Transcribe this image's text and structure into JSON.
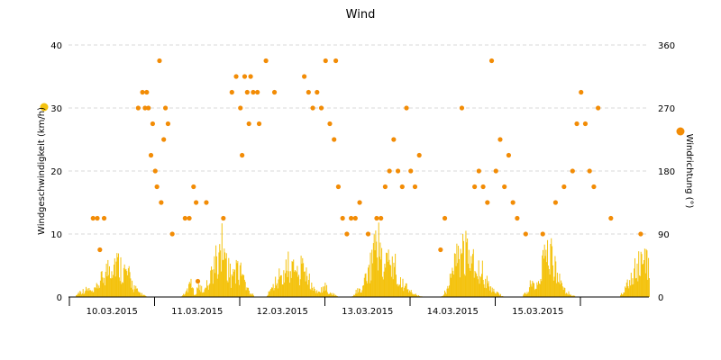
{
  "chart_data": {
    "type": "bar+scatter",
    "title": "Wind",
    "y_left": {
      "label": "Windgeschwindigkeit (km/h)",
      "range": [
        0,
        40
      ],
      "ticks": [
        "0",
        "10",
        "20",
        "30",
        "40"
      ],
      "color": "#f4c20d"
    },
    "y_right": {
      "label": "Windrichtung (°)",
      "range": [
        0,
        360
      ],
      "ticks": [
        "0",
        "90",
        "180",
        "270",
        "360"
      ],
      "color": "#f28c06"
    },
    "x_tick_labels": [
      "10.03.2015",
      "11.03.2015",
      "12.03.2015",
      "13.03.2015",
      "14.03.2015",
      "15.03.2015"
    ],
    "grid": "horizontal-dashed",
    "series": [
      {
        "kind": "bar",
        "axis": "left",
        "color": "#f4c20d",
        "day_segments": [
          [
            0.0,
            1.0,
            1.2,
            1.5,
            0.8,
            2.0,
            3.5,
            5.0,
            6.5,
            7.0,
            6.0,
            5.0,
            4.0,
            2.0,
            1.0,
            0.5,
            0.0
          ],
          [
            0.0,
            1.0,
            3.0,
            0.5,
            2.0,
            1.0,
            3.0,
            5.0,
            8.0,
            10.0,
            7.0,
            4.0,
            6.0,
            5.0,
            3.0,
            1.0,
            0.5
          ],
          [
            0.0,
            1.5,
            3.0,
            4.0,
            5.0,
            6.0,
            5.5,
            4.0,
            6.0,
            5.0,
            2.0,
            1.0,
            1.5,
            2.0,
            1.0,
            0.5,
            0.0
          ],
          [
            0.0,
            1.0,
            1.5,
            3.0,
            5.0,
            9.0,
            10.5,
            7.0,
            8.0,
            6.5,
            5.0,
            3.0,
            2.0,
            1.0,
            0.5,
            0.2,
            0.0
          ],
          [
            0.0,
            1.0,
            3.0,
            6.0,
            8.0,
            10.0,
            9.0,
            7.0,
            6.0,
            5.0,
            3.0,
            1.5,
            1.0,
            0.5,
            0.0,
            0.0,
            0.0
          ],
          [
            0.0,
            1.0,
            2.5,
            3.0,
            4.0,
            7.0,
            9.5,
            6.0,
            5.0,
            2.0,
            1.0,
            0.5,
            0.0,
            0.0,
            0.0,
            0.0,
            0.0
          ],
          [
            0.0,
            1.5,
            3.0,
            5.0,
            6.0,
            7.5,
            6.0,
            4.0,
            3.0,
            1.0,
            0.0,
            0.0,
            0.0,
            0.0,
            0.0,
            0.0,
            0.0
          ]
        ]
      },
      {
        "kind": "scatter",
        "axis": "right",
        "color": "#f28c06",
        "x_unit": "day offset from 10.03.2015 00:00",
        "points": [
          [
            -0.23,
            112.5
          ],
          [
            -0.18,
            112.5
          ],
          [
            -0.15,
            67.5
          ],
          [
            -0.1,
            112.5
          ],
          [
            0.3,
            270
          ],
          [
            0.35,
            292.5
          ],
          [
            0.38,
            270
          ],
          [
            0.4,
            292.5
          ],
          [
            0.42,
            270
          ],
          [
            0.45,
            202.5
          ],
          [
            0.47,
            247.5
          ],
          [
            0.5,
            180
          ],
          [
            0.52,
            157.5
          ],
          [
            0.55,
            337.5
          ],
          [
            0.57,
            135
          ],
          [
            0.6,
            225
          ],
          [
            0.62,
            270
          ],
          [
            0.65,
            247.5
          ],
          [
            0.7,
            90
          ],
          [
            0.85,
            112.5
          ],
          [
            0.9,
            112.5
          ],
          [
            0.95,
            157.5
          ],
          [
            0.98,
            135
          ],
          [
            1.0,
            22.5
          ],
          [
            1.1,
            135
          ],
          [
            1.3,
            112.5
          ],
          [
            1.4,
            292.5
          ],
          [
            1.45,
            315
          ],
          [
            1.5,
            270
          ],
          [
            1.52,
            202.5
          ],
          [
            1.55,
            315
          ],
          [
            1.58,
            292.5
          ],
          [
            1.6,
            247.5
          ],
          [
            1.62,
            315
          ],
          [
            1.65,
            292.5
          ],
          [
            1.7,
            292.5
          ],
          [
            1.72,
            247.5
          ],
          [
            1.8,
            337.5
          ],
          [
            1.9,
            292.5
          ],
          [
            2.25,
            315
          ],
          [
            2.3,
            292.5
          ],
          [
            2.35,
            270
          ],
          [
            2.4,
            292.5
          ],
          [
            2.45,
            270
          ],
          [
            2.5,
            337.5
          ],
          [
            2.55,
            247.5
          ],
          [
            2.6,
            225
          ],
          [
            2.62,
            337.5
          ],
          [
            2.65,
            157.5
          ],
          [
            2.7,
            112.5
          ],
          [
            2.75,
            90
          ],
          [
            2.8,
            112.5
          ],
          [
            2.85,
            112.5
          ],
          [
            2.9,
            135
          ],
          [
            3.0,
            90
          ],
          [
            3.1,
            112.5
          ],
          [
            3.15,
            112.5
          ],
          [
            3.2,
            157.5
          ],
          [
            3.25,
            180
          ],
          [
            3.3,
            225
          ],
          [
            3.35,
            180
          ],
          [
            3.4,
            157.5
          ],
          [
            3.45,
            270
          ],
          [
            3.5,
            180
          ],
          [
            3.55,
            157.5
          ],
          [
            3.6,
            202.5
          ],
          [
            3.85,
            67.5
          ],
          [
            3.9,
            112.5
          ],
          [
            4.1,
            270
          ],
          [
            4.25,
            157.5
          ],
          [
            4.3,
            180
          ],
          [
            4.35,
            157.5
          ],
          [
            4.4,
            135
          ],
          [
            4.45,
            337.5
          ],
          [
            4.5,
            180
          ],
          [
            4.55,
            225
          ],
          [
            4.6,
            157.5
          ],
          [
            4.65,
            202.5
          ],
          [
            4.7,
            135
          ],
          [
            4.75,
            112.5
          ],
          [
            4.85,
            90
          ],
          [
            5.05,
            90
          ],
          [
            5.2,
            135
          ],
          [
            5.3,
            157.5
          ],
          [
            5.4,
            180
          ],
          [
            5.45,
            247.5
          ],
          [
            5.5,
            292.5
          ],
          [
            5.55,
            247.5
          ],
          [
            5.6,
            180
          ],
          [
            5.65,
            157.5
          ],
          [
            5.7,
            270
          ],
          [
            5.85,
            112.5
          ],
          [
            6.2,
            90
          ],
          [
            6.3,
            112.5
          ],
          [
            6.35,
            180
          ],
          [
            6.4,
            157.5
          ],
          [
            6.45,
            135
          ],
          [
            6.5,
            180
          ],
          [
            6.55,
            247.5
          ],
          [
            6.6,
            202.5
          ],
          [
            6.65,
            315
          ],
          [
            6.7,
            157.5
          ],
          [
            6.72,
            225
          ],
          [
            6.75,
            270
          ]
        ]
      }
    ],
    "legend": "axis-side markers"
  }
}
